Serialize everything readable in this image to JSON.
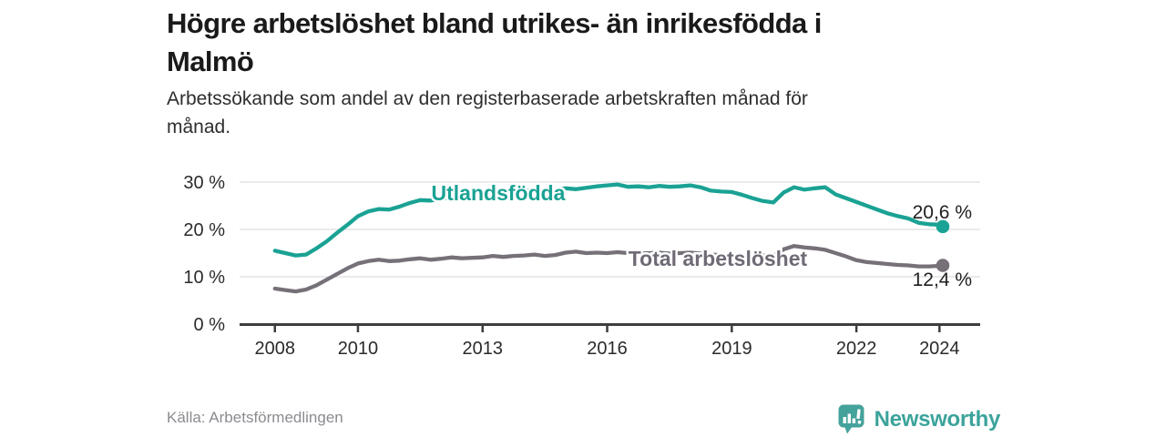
{
  "header": {
    "title_lines": [
      "Högre arbetslöshet bland utrikes- än inrikesfödda i",
      "Malmö"
    ],
    "subtitle_lines": [
      "Arbetssökande som andel av den registerbaserade arbetskraften månad för",
      "månad."
    ]
  },
  "chart_data": {
    "type": "line",
    "title": "Högre arbetslöshet bland utrikes- än inrikesfödda i Malmö",
    "subtitle": "Arbetssökande som andel av den registerbaserade arbetskraften månad för månad.",
    "xlabel": "",
    "ylabel": "",
    "ylim": [
      0,
      30
    ],
    "xlim": [
      2007.15,
      2024.98
    ],
    "grid": "horizontal",
    "legend_position": "inline-on-line",
    "y_ticks": [
      {
        "value": 30,
        "label": "30 %"
      },
      {
        "value": 20,
        "label": "20 %"
      },
      {
        "value": 10,
        "label": "10 %"
      },
      {
        "value": 0,
        "label": "0 %"
      }
    ],
    "x_ticks": [
      {
        "value": 2008,
        "label": "2008"
      },
      {
        "value": 2010,
        "label": "2010"
      },
      {
        "value": 2013,
        "label": "2013"
      },
      {
        "value": 2016,
        "label": "2016"
      },
      {
        "value": 2019,
        "label": "2019"
      },
      {
        "value": 2022,
        "label": "2022"
      },
      {
        "value": 2024,
        "label": "2024"
      }
    ],
    "x": [
      2008.0,
      2008.25,
      2008.5,
      2008.75,
      2009.0,
      2009.25,
      2009.5,
      2009.75,
      2010.0,
      2010.25,
      2010.5,
      2010.75,
      2011.0,
      2011.25,
      2011.5,
      2011.75,
      2012.0,
      2012.25,
      2012.5,
      2012.75,
      2013.0,
      2013.25,
      2013.5,
      2013.75,
      2014.0,
      2014.25,
      2014.5,
      2014.75,
      2015.0,
      2015.25,
      2015.5,
      2015.75,
      2016.0,
      2016.25,
      2016.5,
      2016.75,
      2017.0,
      2017.25,
      2017.5,
      2017.75,
      2018.0,
      2018.25,
      2018.5,
      2018.75,
      2019.0,
      2019.25,
      2019.5,
      2019.75,
      2020.0,
      2020.25,
      2020.5,
      2020.75,
      2021.0,
      2021.25,
      2021.5,
      2021.75,
      2022.0,
      2022.25,
      2022.5,
      2022.75,
      2023.0,
      2023.25,
      2023.5,
      2023.75,
      2024.0,
      2024.08
    ],
    "series": [
      {
        "name": "Utlandsfödda",
        "color": "#1aa294",
        "end_label": "20,6 %",
        "end_value": 20.6,
        "values": [
          15.5,
          15.0,
          14.5,
          14.7,
          16.0,
          17.5,
          19.3,
          21.0,
          22.8,
          23.8,
          24.3,
          24.2,
          24.8,
          25.6,
          26.2,
          26.1,
          26.4,
          26.8,
          26.7,
          27.0,
          27.2,
          27.6,
          27.4,
          27.8,
          28.1,
          28.4,
          28.1,
          28.3,
          28.7,
          28.5,
          28.8,
          29.1,
          29.3,
          29.5,
          29.0,
          29.1,
          28.9,
          29.2,
          29.0,
          29.1,
          29.3,
          28.9,
          28.2,
          28.0,
          27.9,
          27.3,
          26.6,
          26.0,
          25.7,
          27.8,
          28.9,
          28.4,
          28.7,
          28.9,
          27.4,
          26.6,
          25.8,
          25.0,
          24.2,
          23.4,
          22.8,
          22.3,
          21.4,
          21.1,
          21.0,
          20.6
        ]
      },
      {
        "name": "Total arbetslöshet",
        "color": "#767079",
        "end_label": "12,4 %",
        "end_value": 12.4,
        "values": [
          7.5,
          7.2,
          6.9,
          7.3,
          8.2,
          9.4,
          10.6,
          11.8,
          12.8,
          13.3,
          13.6,
          13.3,
          13.4,
          13.7,
          13.9,
          13.6,
          13.8,
          14.1,
          13.9,
          14.0,
          14.1,
          14.4,
          14.2,
          14.4,
          14.5,
          14.7,
          14.4,
          14.6,
          15.1,
          15.3,
          15.0,
          15.1,
          15.0,
          15.2,
          15.0,
          14.9,
          15.0,
          15.1,
          14.9,
          15.0,
          15.1,
          14.9,
          14.7,
          14.6,
          14.7,
          14.5,
          14.4,
          14.5,
          14.4,
          15.8,
          16.5,
          16.2,
          16.0,
          15.7,
          15.0,
          14.3,
          13.5,
          13.1,
          12.9,
          12.7,
          12.5,
          12.4,
          12.2,
          12.2,
          12.3,
          12.4
        ]
      }
    ],
    "colors": {
      "grid": "#e4e4e6",
      "axis": "#3d3d3d",
      "series_teal": "#1aa294",
      "series_gray": "#767079",
      "gray_label": "#6f6a75"
    }
  },
  "footer": {
    "source": "Källa: Arbetsförmedlingen",
    "brand": "Newsworthy"
  }
}
